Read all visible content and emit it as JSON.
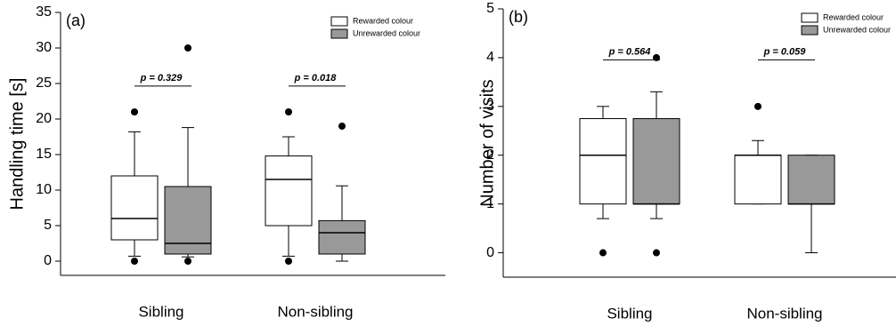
{
  "chart_data": [
    {
      "type": "box",
      "panel_label": "(a)",
      "y_label": "Handling time [s]",
      "categories": [
        "Sibling",
        "Non-sibling"
      ],
      "ylim": [
        -2,
        35
      ],
      "yticks": [
        0,
        5,
        10,
        15,
        20,
        25,
        30,
        35
      ],
      "annotations": [
        "p = 0.329",
        "p = 0.018"
      ],
      "legend": "upper right",
      "series": [
        {
          "name": "Rewarded colour",
          "color": "#ffffff",
          "values": [
            {
              "whislo": 0.7,
              "q1": 3,
              "med": 6,
              "q3": 12,
              "whishi": 18.2,
              "fliers": [
                21,
                0
              ]
            },
            {
              "whislo": 0.7,
              "q1": 5,
              "med": 11.5,
              "q3": 14.8,
              "whishi": 17.5,
              "fliers": [
                21,
                0
              ]
            }
          ]
        },
        {
          "name": "Unrewarded colour",
          "color": "#999999",
          "values": [
            {
              "whislo": 0.6,
              "q1": 1,
              "med": 2.5,
              "q3": 10.5,
              "whishi": 18.8,
              "fliers": [
                30,
                0
              ]
            },
            {
              "whislo": 0,
              "q1": 1,
              "med": 4,
              "q3": 5.7,
              "whishi": 10.6,
              "fliers": [
                19
              ]
            }
          ]
        }
      ]
    },
    {
      "type": "box",
      "panel_label": "(b)",
      "y_label": "Number of visits",
      "categories": [
        "Sibling",
        "Non-sibling"
      ],
      "ylim": [
        -0.5,
        5
      ],
      "yticks": [
        0,
        1,
        2,
        3,
        4,
        5
      ],
      "annotations": [
        "p = 0.564",
        "p = 0.059"
      ],
      "legend": "upper right",
      "series": [
        {
          "name": "Rewarded colour",
          "color": "#ffffff",
          "values": [
            {
              "whislo": 0.7,
              "q1": 1,
              "med": 2,
              "q3": 2.75,
              "whishi": 3,
              "fliers": [
                0
              ]
            },
            {
              "whislo": 1,
              "q1": 1,
              "med": 2,
              "q3": 2,
              "whishi": 2.3,
              "fliers": [
                3
              ]
            }
          ]
        },
        {
          "name": "Unrewarded colour",
          "color": "#999999",
          "values": [
            {
              "whislo": 0.7,
              "q1": 1,
              "med": 1,
              "q3": 2.75,
              "whishi": 3.3,
              "fliers": [
                4,
                0
              ]
            },
            {
              "whislo": 0,
              "q1": 1,
              "med": 1,
              "q3": 2,
              "whishi": 2,
              "fliers": []
            }
          ]
        }
      ]
    }
  ]
}
